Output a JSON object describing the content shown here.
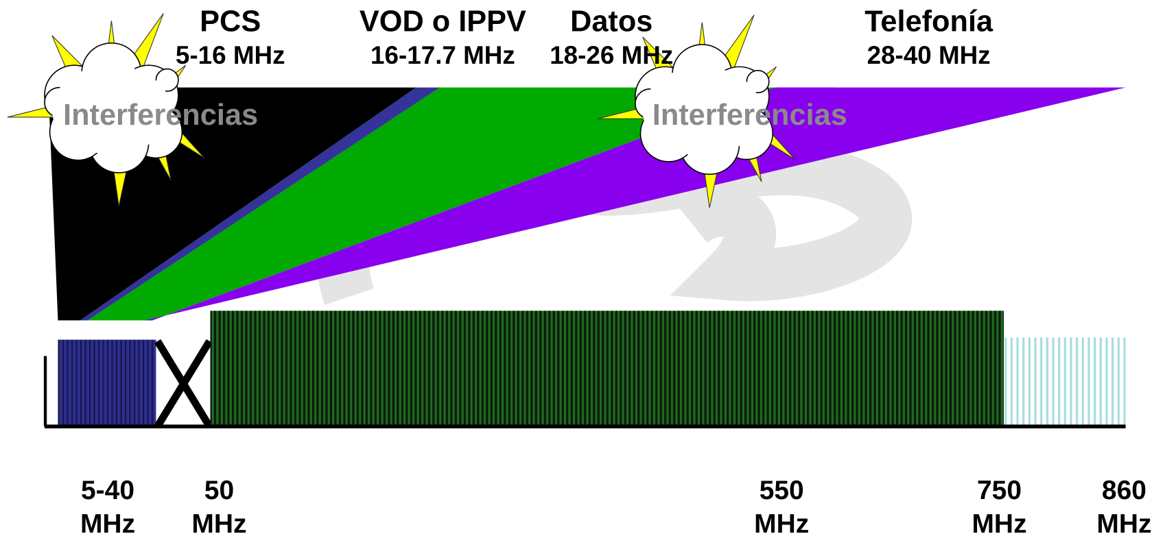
{
  "services": [
    {
      "name": "PCS",
      "range": "5-16 MHz"
    },
    {
      "name": "VOD o IPPV",
      "range": "16-17.7 MHz"
    },
    {
      "name": "Datos",
      "range": "18-26 MHz"
    },
    {
      "name": "Telefonía",
      "range": "28-40 MHz"
    }
  ],
  "interference": [
    "Interferencias",
    "Interferencias"
  ],
  "frequencies": [
    [
      "5-40",
      "MHz"
    ],
    [
      "50",
      "MHz"
    ],
    [
      "550",
      "MHz"
    ],
    [
      "750",
      "MHz"
    ],
    [
      "860",
      "MHz"
    ]
  ]
}
